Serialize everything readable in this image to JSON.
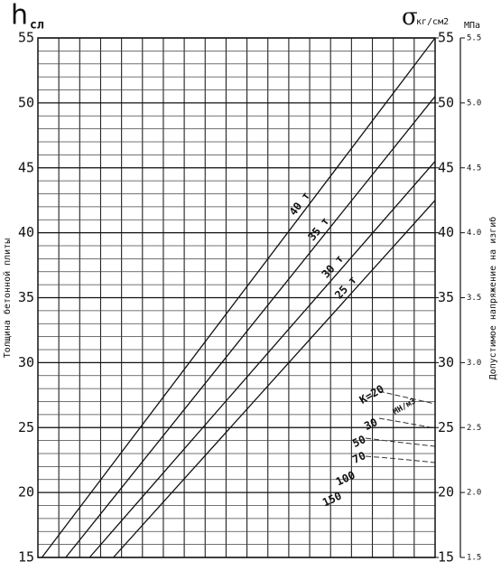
{
  "chart_data": {
    "type": "line",
    "ylabel": "h",
    "ylabel_sub": "сл",
    "y2label": "σ",
    "y2label_sub": "кг/см2",
    "y3label": "МПа",
    "y_title": "Толщина бетонной плиты",
    "y3_title": "Допустимое напряжение на изгиб",
    "xlim": [
      0,
      100
    ],
    "ylim": [
      15,
      55
    ],
    "yticks": [
      15,
      20,
      25,
      30,
      35,
      40,
      45,
      50,
      55
    ],
    "y2lim": [
      15,
      55
    ],
    "y2ticks": [
      15,
      20,
      25,
      30,
      35,
      40,
      45,
      50,
      55
    ],
    "y3lim": [
      1.5,
      5.5
    ],
    "y3ticks": [
      1.5,
      {
        "value": 2,
        "label": "2.0"
      },
      2.5,
      {
        "value": 3,
        "label": "3.0"
      },
      3.5,
      {
        "value": 4,
        "label": "4.0"
      },
      4.5,
      {
        "value": 5,
        "label": "5.0"
      },
      5.5
    ],
    "series": [
      {
        "name": "40 т",
        "color": "#111111",
        "x": [
          1,
          100
        ],
        "values": [
          15,
          55
        ]
      },
      {
        "name": "35 т",
        "color": "#111111",
        "x": [
          7,
          100
        ],
        "values": [
          15,
          50.5
        ]
      },
      {
        "name": "30 т",
        "color": "#111111",
        "x": [
          13,
          100
        ],
        "values": [
          15,
          45.5
        ]
      },
      {
        "name": "25 т",
        "color": "#111111",
        "x": [
          19,
          100
        ],
        "values": [
          15,
          42.5
        ]
      }
    ],
    "annotations": [
      "K=20",
      "МН/м3",
      "30",
      "50",
      "70",
      "100",
      "150"
    ],
    "grid": true
  }
}
